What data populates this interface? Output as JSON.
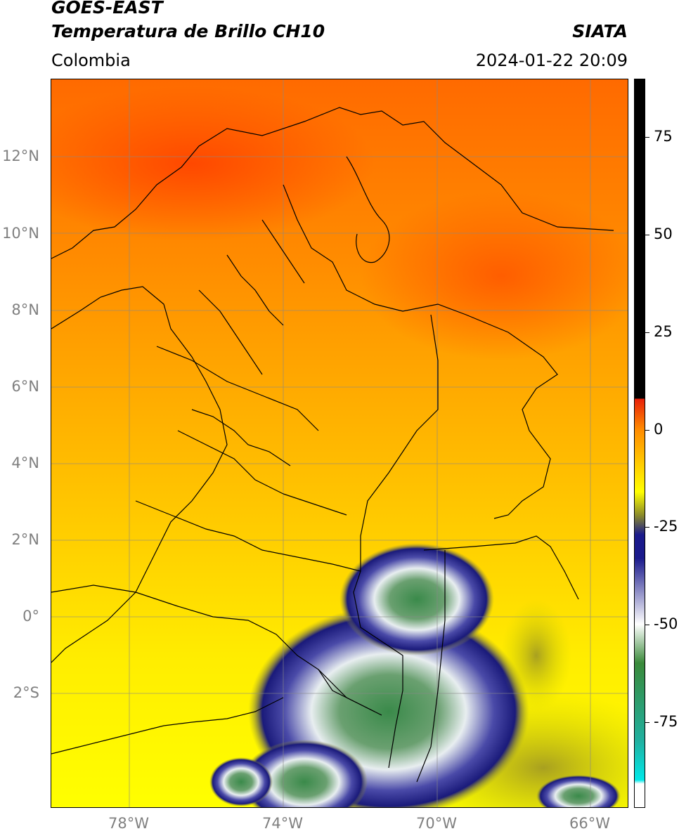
{
  "header": {
    "title1": "GOES-EAST",
    "title2": "Temperatura de Brillo CH10",
    "source": "SIATA",
    "region": "Colombia",
    "datetime": "2024-01-22 20:09"
  },
  "map": {
    "lat_ticks": [
      "12°N",
      "10°N",
      "8°N",
      "6°N",
      "4°N",
      "2°N",
      "0°",
      "2°S"
    ],
    "lon_ticks": [
      "78°W",
      "74°W",
      "70°W",
      "66°W"
    ],
    "lat_range": [
      -5,
      14
    ],
    "lon_range": [
      -80,
      -65
    ],
    "gridlines": true
  },
  "colorbar": {
    "ticks": [
      "75",
      "50",
      "25",
      "0",
      "-25",
      "-50",
      "-75"
    ],
    "tick_values": [
      75,
      50,
      25,
      0,
      -25,
      -50,
      -75
    ],
    "range": [
      -97,
      90
    ],
    "colors": {
      "warm": "#000000",
      "red": "#e8200a",
      "orange": "#ff8c00",
      "yellow": "#ffff00",
      "olive": "#8a8a2a",
      "navy": "#1a1a8c",
      "white": "#ffffff",
      "green": "#3a8a3a",
      "teal": "#20b0a0",
      "cyan": "#00e8e8"
    }
  }
}
